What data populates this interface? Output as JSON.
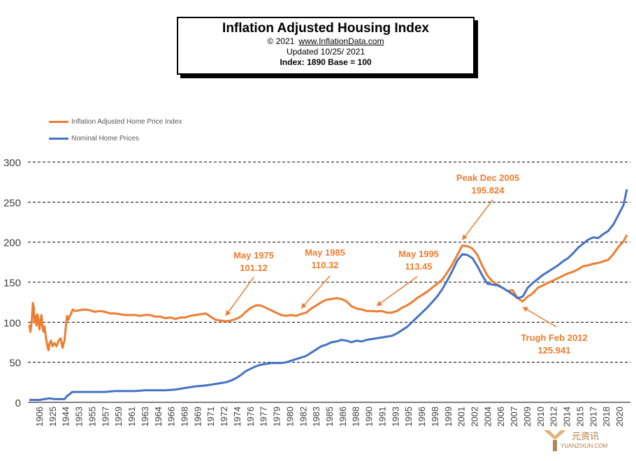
{
  "title": {
    "main": "Inflation Adjusted Housing Index",
    "copyright": "© 2021",
    "url": "www.InflationData.com",
    "updated": "Updated   10/25/ 2021",
    "index_note": "Index: 1890 Base = 100"
  },
  "legend": [
    {
      "label": "Inflation Adjusted Home Price Index",
      "color": "#ed7d31"
    },
    {
      "label": "Nominal Home Prices",
      "color": "#4472c4"
    }
  ],
  "watermark": {
    "cn": "元资讯",
    "en": "YUANZIXUN.COM"
  },
  "chart_data": {
    "type": "line",
    "ylim": [
      0,
      300
    ],
    "yticks": [
      0,
      50,
      100,
      150,
      200,
      250,
      300
    ],
    "grid": "horizontal dashed",
    "legend_placement": "top-left",
    "x_tick_labels": [
      "1906",
      "1925",
      "1944",
      "1953",
      "1955",
      "1957",
      "1959",
      "1961",
      "1963",
      "1964",
      "1966",
      "1968",
      "1969",
      "1971",
      "1972",
      "1974",
      "1976",
      "1977",
      "1979",
      "1980",
      "1982",
      "1983",
      "1985",
      "1986",
      "1988",
      "1990",
      "1991",
      "1993",
      "1995",
      "1996",
      "1998",
      "1999",
      "2001",
      "2002",
      "2004",
      "2006",
      "2007",
      "2009",
      "2010",
      "2012",
      "2014",
      "2015",
      "2017",
      "2018",
      "2020"
    ],
    "series": [
      {
        "name": "Inflation Adjusted Home Price Index",
        "color": "#ed7d31",
        "points": [
          [
            1.0,
            97
          ],
          [
            1.2,
            88
          ],
          [
            1.5,
            103
          ],
          [
            1.7,
            124
          ],
          [
            1.9,
            118
          ],
          [
            2.0,
            100
          ],
          [
            2.2,
            108
          ],
          [
            2.4,
            96
          ],
          [
            2.6,
            110
          ],
          [
            2.8,
            103
          ],
          [
            3.0,
            91
          ],
          [
            3.2,
            100
          ],
          [
            3.4,
            109
          ],
          [
            3.6,
            94
          ],
          [
            3.8,
            88
          ],
          [
            4.0,
            95
          ],
          [
            4.3,
            80
          ],
          [
            4.6,
            70
          ],
          [
            4.8,
            65
          ],
          [
            5.0,
            73
          ],
          [
            5.3,
            77
          ],
          [
            5.6,
            70
          ],
          [
            6.0,
            74
          ],
          [
            6.4,
            70
          ],
          [
            6.8,
            77
          ],
          [
            7.2,
            80
          ],
          [
            7.6,
            68
          ],
          [
            8.0,
            78
          ],
          [
            8.3,
            98
          ],
          [
            8.5,
            108
          ],
          [
            8.7,
            103
          ],
          [
            9.0,
            107
          ],
          [
            9.3,
            111
          ],
          [
            9.6,
            116
          ],
          [
            10,
            114
          ],
          [
            11,
            115
          ],
          [
            12,
            116
          ],
          [
            13,
            115
          ],
          [
            14,
            113
          ],
          [
            15,
            114
          ],
          [
            16,
            113
          ],
          [
            17,
            111
          ],
          [
            18,
            111
          ],
          [
            19,
            110
          ],
          [
            20,
            109
          ],
          [
            21,
            109
          ],
          [
            22,
            109
          ],
          [
            23,
            108
          ],
          [
            24,
            109
          ],
          [
            25,
            109
          ],
          [
            26,
            107
          ],
          [
            27,
            107
          ],
          [
            28,
            105
          ],
          [
            29,
            106
          ],
          [
            30,
            104
          ],
          [
            31,
            106
          ],
          [
            32,
            106
          ],
          [
            33,
            108
          ],
          [
            34,
            109
          ],
          [
            35,
            110
          ],
          [
            36,
            111
          ],
          [
            37,
            107
          ],
          [
            38,
            103
          ],
          [
            39,
            102
          ],
          [
            40,
            101.12
          ],
          [
            41,
            102
          ],
          [
            42,
            104
          ],
          [
            43,
            107
          ],
          [
            44,
            113
          ],
          [
            45,
            118
          ],
          [
            46,
            121
          ],
          [
            47,
            121
          ],
          [
            48,
            118
          ],
          [
            49,
            115
          ],
          [
            50,
            112
          ],
          [
            51,
            109
          ],
          [
            52,
            108
          ],
          [
            53,
            109
          ],
          [
            54,
            108
          ],
          [
            55,
            110.32
          ],
          [
            56,
            112
          ],
          [
            57,
            117
          ],
          [
            58,
            121
          ],
          [
            59,
            125
          ],
          [
            60,
            128
          ],
          [
            61,
            129
          ],
          [
            62,
            130
          ],
          [
            63,
            129
          ],
          [
            64,
            126
          ],
          [
            65,
            120
          ],
          [
            66,
            117
          ],
          [
            67,
            116
          ],
          [
            68,
            114
          ],
          [
            69,
            114
          ],
          [
            70,
            113.45
          ],
          [
            71,
            114
          ],
          [
            72,
            112
          ],
          [
            73,
            112
          ],
          [
            74,
            114
          ],
          [
            75,
            118
          ],
          [
            76,
            121
          ],
          [
            77,
            125
          ],
          [
            78,
            130
          ],
          [
            79,
            134
          ],
          [
            80,
            138
          ],
          [
            81,
            143
          ],
          [
            82,
            148
          ],
          [
            83,
            153
          ],
          [
            84,
            162
          ],
          [
            85,
            172
          ],
          [
            86,
            184
          ],
          [
            87,
            195.824
          ],
          [
            88,
            195
          ],
          [
            89,
            192
          ],
          [
            90,
            184
          ],
          [
            91,
            170
          ],
          [
            92,
            158
          ],
          [
            93,
            151
          ],
          [
            94,
            147
          ],
          [
            95,
            143
          ],
          [
            96,
            139
          ],
          [
            97,
            140
          ],
          [
            98,
            130
          ],
          [
            99,
            125.941
          ],
          [
            100,
            132
          ],
          [
            101,
            136
          ],
          [
            102,
            143
          ],
          [
            103,
            146
          ],
          [
            104,
            149
          ],
          [
            105,
            152
          ],
          [
            106,
            155
          ],
          [
            107,
            158
          ],
          [
            108,
            161
          ],
          [
            109,
            163
          ],
          [
            110,
            166
          ],
          [
            111,
            170
          ],
          [
            112,
            171
          ],
          [
            113,
            173
          ],
          [
            114,
            174
          ],
          [
            115,
            176
          ],
          [
            116,
            178
          ],
          [
            117,
            185
          ],
          [
            118,
            194
          ],
          [
            119,
            201
          ],
          [
            119.7,
            209
          ]
        ]
      },
      {
        "name": "Nominal Home Prices",
        "color": "#4472c4",
        "points": [
          [
            1.0,
            3
          ],
          [
            1.5,
            3
          ],
          [
            2.0,
            3
          ],
          [
            3.0,
            3
          ],
          [
            4.0,
            4
          ],
          [
            5.0,
            5
          ],
          [
            6.0,
            4
          ],
          [
            7.0,
            4
          ],
          [
            8.0,
            4
          ],
          [
            8.5,
            8
          ],
          [
            9.0,
            10
          ],
          [
            9.5,
            13
          ],
          [
            10,
            13
          ],
          [
            12,
            13
          ],
          [
            14,
            13
          ],
          [
            16,
            13
          ],
          [
            18,
            14
          ],
          [
            20,
            14
          ],
          [
            22,
            14
          ],
          [
            24,
            15
          ],
          [
            26,
            15
          ],
          [
            28,
            15
          ],
          [
            30,
            16
          ],
          [
            32,
            18
          ],
          [
            34,
            20
          ],
          [
            36,
            21
          ],
          [
            37,
            22
          ],
          [
            38,
            23
          ],
          [
            39,
            24
          ],
          [
            40,
            25
          ],
          [
            41,
            27
          ],
          [
            42,
            30
          ],
          [
            43,
            34
          ],
          [
            44,
            39
          ],
          [
            45,
            42
          ],
          [
            46,
            45
          ],
          [
            47,
            47
          ],
          [
            48,
            48
          ],
          [
            49,
            49
          ],
          [
            50,
            49
          ],
          [
            51,
            49
          ],
          [
            52,
            50
          ],
          [
            53,
            52
          ],
          [
            54,
            54
          ],
          [
            55,
            56
          ],
          [
            56,
            58
          ],
          [
            57,
            62
          ],
          [
            58,
            66
          ],
          [
            59,
            70
          ],
          [
            60,
            72
          ],
          [
            61,
            75
          ],
          [
            62,
            76
          ],
          [
            63,
            78
          ],
          [
            64,
            77
          ],
          [
            65,
            75
          ],
          [
            66,
            77
          ],
          [
            67,
            76
          ],
          [
            68,
            78
          ],
          [
            69,
            79
          ],
          [
            70,
            80
          ],
          [
            71,
            81
          ],
          [
            72,
            82
          ],
          [
            73,
            83
          ],
          [
            74,
            86
          ],
          [
            75,
            90
          ],
          [
            76,
            94
          ],
          [
            77,
            100
          ],
          [
            78,
            106
          ],
          [
            79,
            112
          ],
          [
            80,
            118
          ],
          [
            81,
            125
          ],
          [
            82,
            132
          ],
          [
            83,
            141
          ],
          [
            84,
            152
          ],
          [
            85,
            164
          ],
          [
            86,
            177
          ],
          [
            87,
            185
          ],
          [
            88,
            184
          ],
          [
            89,
            180
          ],
          [
            90,
            170
          ],
          [
            91,
            158
          ],
          [
            92,
            148
          ],
          [
            93,
            147
          ],
          [
            94,
            146
          ],
          [
            95,
            143
          ],
          [
            96,
            139
          ],
          [
            97,
            135
          ],
          [
            98,
            130
          ],
          [
            99,
            132
          ],
          [
            100,
            143
          ],
          [
            101,
            149
          ],
          [
            102,
            154
          ],
          [
            103,
            159
          ],
          [
            104,
            163
          ],
          [
            105,
            167
          ],
          [
            106,
            171
          ],
          [
            107,
            176
          ],
          [
            108,
            180
          ],
          [
            109,
            186
          ],
          [
            110,
            193
          ],
          [
            111,
            198
          ],
          [
            112,
            203
          ],
          [
            113,
            206
          ],
          [
            114,
            205
          ],
          [
            115,
            210
          ],
          [
            116,
            214
          ],
          [
            117,
            222
          ],
          [
            118,
            234
          ],
          [
            119,
            246
          ],
          [
            119.7,
            266
          ]
        ]
      }
    ],
    "annotations": [
      {
        "label": "May 1975",
        "value": "101.12",
        "x": 40,
        "y": 101.12
      },
      {
        "label": "May 1985",
        "value": "110.32",
        "x": 55,
        "y": 110.32
      },
      {
        "label": "May 1995",
        "value": "113.45",
        "x": 70,
        "y": 113.45
      },
      {
        "label": "Peak Dec 2005",
        "value": "195.824",
        "x": 87,
        "y": 195.824
      },
      {
        "label": "Trugh Feb 2012",
        "value": "125.941",
        "x": 99,
        "y": 125.941
      }
    ]
  }
}
